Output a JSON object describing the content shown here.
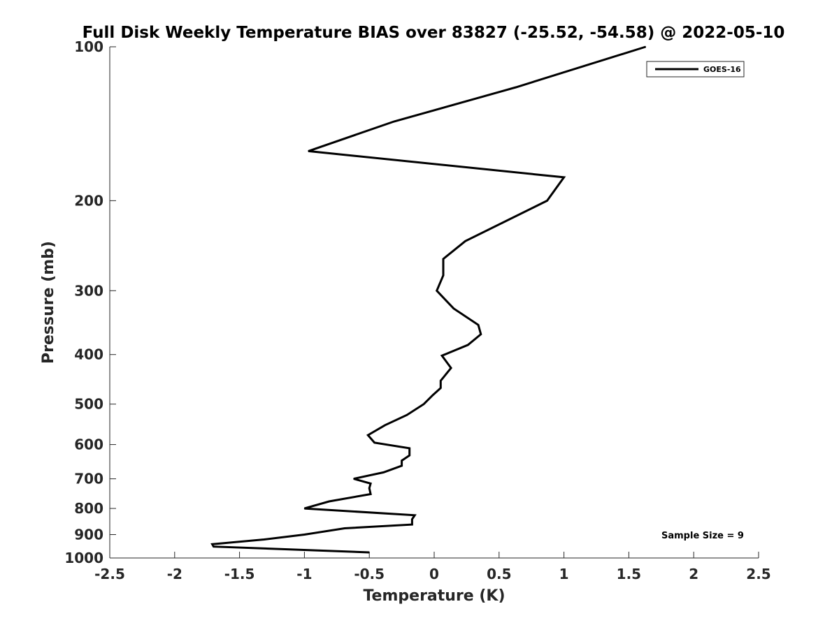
{
  "chart_data": {
    "type": "line",
    "title": "Full Disk Weekly Temperature BIAS over 83827 (-25.52, -54.58) @ 2022-05-10",
    "xlabel": "Temperature (K)",
    "ylabel": "Pressure (mb)",
    "xlim": [
      -2.5,
      2.5
    ],
    "ylim": [
      100,
      1000
    ],
    "y_scale": "log",
    "y_reversed": true,
    "xticks": [
      -2.5,
      -2,
      -1.5,
      -1,
      -0.5,
      0,
      0.5,
      1,
      1.5,
      2,
      2.5
    ],
    "xtick_labels": [
      "-2.5",
      "-2",
      "-1.5",
      "-1",
      "-0.5",
      "0",
      "0.5",
      "1",
      "1.5",
      "2",
      "2.5"
    ],
    "yticks": [
      100,
      200,
      300,
      400,
      500,
      600,
      700,
      800,
      900,
      1000
    ],
    "ytick_labels": [
      "100",
      "200",
      "300",
      "400",
      "500",
      "600",
      "700",
      "800",
      "900",
      "1000"
    ],
    "grid": false,
    "legend": {
      "placement": "top-right",
      "entries": [
        "GOES-16"
      ]
    },
    "annotation": "Sample Size = 9",
    "series": [
      {
        "name": "GOES-16",
        "color": "#000000",
        "points": [
          {
            "x": 1.63,
            "p": 100
          },
          {
            "x": 0.63,
            "p": 120
          },
          {
            "x": -0.31,
            "p": 140
          },
          {
            "x": -0.97,
            "p": 160
          },
          {
            "x": 1.0,
            "p": 180
          },
          {
            "x": 0.87,
            "p": 200
          },
          {
            "x": 0.24,
            "p": 240
          },
          {
            "x": 0.07,
            "p": 260
          },
          {
            "x": 0.07,
            "p": 280
          },
          {
            "x": 0.02,
            "p": 300
          },
          {
            "x": 0.15,
            "p": 325
          },
          {
            "x": 0.34,
            "p": 350
          },
          {
            "x": 0.36,
            "p": 365
          },
          {
            "x": 0.26,
            "p": 383
          },
          {
            "x": 0.06,
            "p": 402
          },
          {
            "x": 0.13,
            "p": 425
          },
          {
            "x": 0.05,
            "p": 450
          },
          {
            "x": 0.05,
            "p": 465
          },
          {
            "x": -0.01,
            "p": 480
          },
          {
            "x": -0.08,
            "p": 500
          },
          {
            "x": -0.21,
            "p": 525
          },
          {
            "x": -0.38,
            "p": 550
          },
          {
            "x": -0.51,
            "p": 575
          },
          {
            "x": -0.46,
            "p": 595
          },
          {
            "x": -0.19,
            "p": 610
          },
          {
            "x": -0.19,
            "p": 630
          },
          {
            "x": -0.25,
            "p": 645
          },
          {
            "x": -0.25,
            "p": 660
          },
          {
            "x": -0.39,
            "p": 680
          },
          {
            "x": -0.62,
            "p": 700
          },
          {
            "x": -0.49,
            "p": 715
          },
          {
            "x": -0.5,
            "p": 730
          },
          {
            "x": -0.49,
            "p": 750
          },
          {
            "x": -0.81,
            "p": 775
          },
          {
            "x": -1.0,
            "p": 800
          },
          {
            "x": -0.15,
            "p": 825
          },
          {
            "x": -0.17,
            "p": 840
          },
          {
            "x": -0.17,
            "p": 860
          },
          {
            "x": -0.69,
            "p": 875
          },
          {
            "x": -1.0,
            "p": 900
          },
          {
            "x": -1.31,
            "p": 920
          },
          {
            "x": -1.71,
            "p": 940
          },
          {
            "x": -1.7,
            "p": 950
          },
          {
            "x": -0.5,
            "p": 975
          }
        ]
      }
    ]
  }
}
